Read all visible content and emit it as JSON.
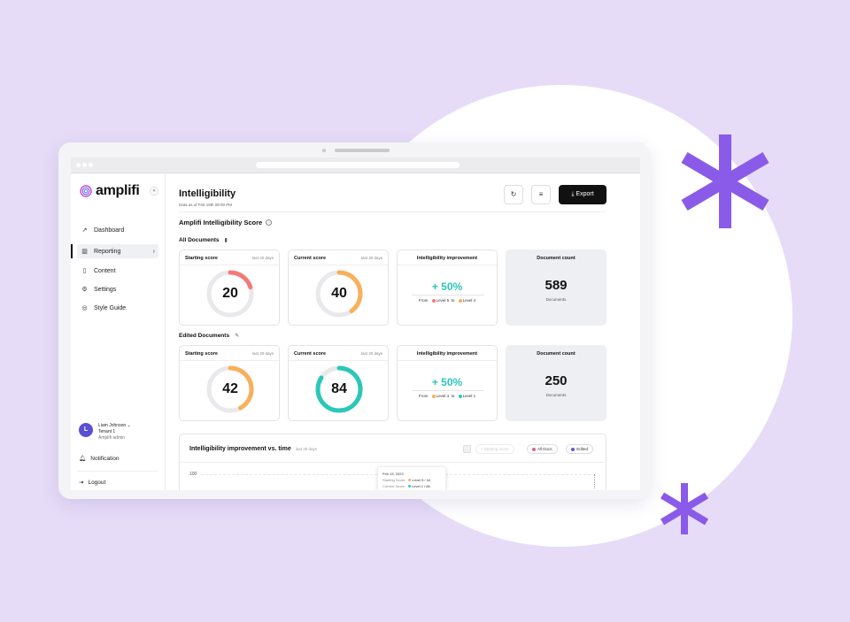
{
  "app": {
    "logo": "amplifi"
  },
  "sidebar": {
    "items": [
      {
        "label": "Dashboard",
        "icon": "trend-icon"
      },
      {
        "label": "Reporting",
        "icon": "bar-chart-icon"
      },
      {
        "label": "Content",
        "icon": "document-icon"
      },
      {
        "label": "Settings",
        "icon": "gear-icon"
      },
      {
        "label": "Style Guide",
        "icon": "palette-icon"
      }
    ],
    "user": {
      "name": "Liam Johnson",
      "initial": "L",
      "tenant": "Tenant 1",
      "role": "Amplifi admin"
    },
    "notification": "Notification",
    "logout": "Logout"
  },
  "header": {
    "title": "Intelligibility",
    "subtitle": "Data as of Feb 18th 09:00 PM",
    "export_label": "Export"
  },
  "score_section": {
    "title": "Amplifi Intelligibility Score"
  },
  "all_documents": {
    "title": "All Documents",
    "starting": {
      "label": "Starting score",
      "period": "last 30 days",
      "value": "20",
      "color": "#f47a7a"
    },
    "current": {
      "label": "Current score",
      "period": "last 30 days",
      "value": "40",
      "color": "#f8b05a"
    },
    "improvement": {
      "label": "Intelligibility improvement",
      "value": "+ 50%",
      "from_label": "From",
      "from_level": "Level 5",
      "to_label": "to",
      "to_level": "Level 4"
    },
    "count": {
      "label": "Document count",
      "value": "589",
      "unit": "Documents"
    }
  },
  "edited_documents": {
    "title": "Edited Documents",
    "starting": {
      "label": "Starting score",
      "period": "last 30 days",
      "value": "42",
      "color": "#f8b05a"
    },
    "current": {
      "label": "Current score",
      "period": "last 30 days",
      "value": "84",
      "color": "#2bc7b9"
    },
    "improvement": {
      "label": "Intelligibility improvement",
      "value": "+ 50%",
      "from_label": "From",
      "from_level": "Level 4",
      "to_label": "to",
      "to_level": "Level 1"
    },
    "count": {
      "label": "Document count",
      "value": "250",
      "unit": "Documents"
    }
  },
  "chart": {
    "title": "Intelligibility improvement vs. time",
    "period": "last 30 days",
    "legend": {
      "starting": "Starting score",
      "all_docs": "All Docs",
      "edited": "Edited"
    },
    "y_tick": "100",
    "tooltip": {
      "date": "Feb 13, 2023",
      "starting_label": "Starting Score",
      "starting_value": "Level 5  / 44",
      "current_label": "Current Score",
      "current_value": "Level 1 / 86"
    }
  },
  "colors": {
    "accent": "#8b5cf6",
    "teal": "#2bc7b9",
    "orange": "#f8b05a",
    "red": "#f47a7a",
    "purple": "#6a4fe0",
    "pink": "#e0609a"
  }
}
